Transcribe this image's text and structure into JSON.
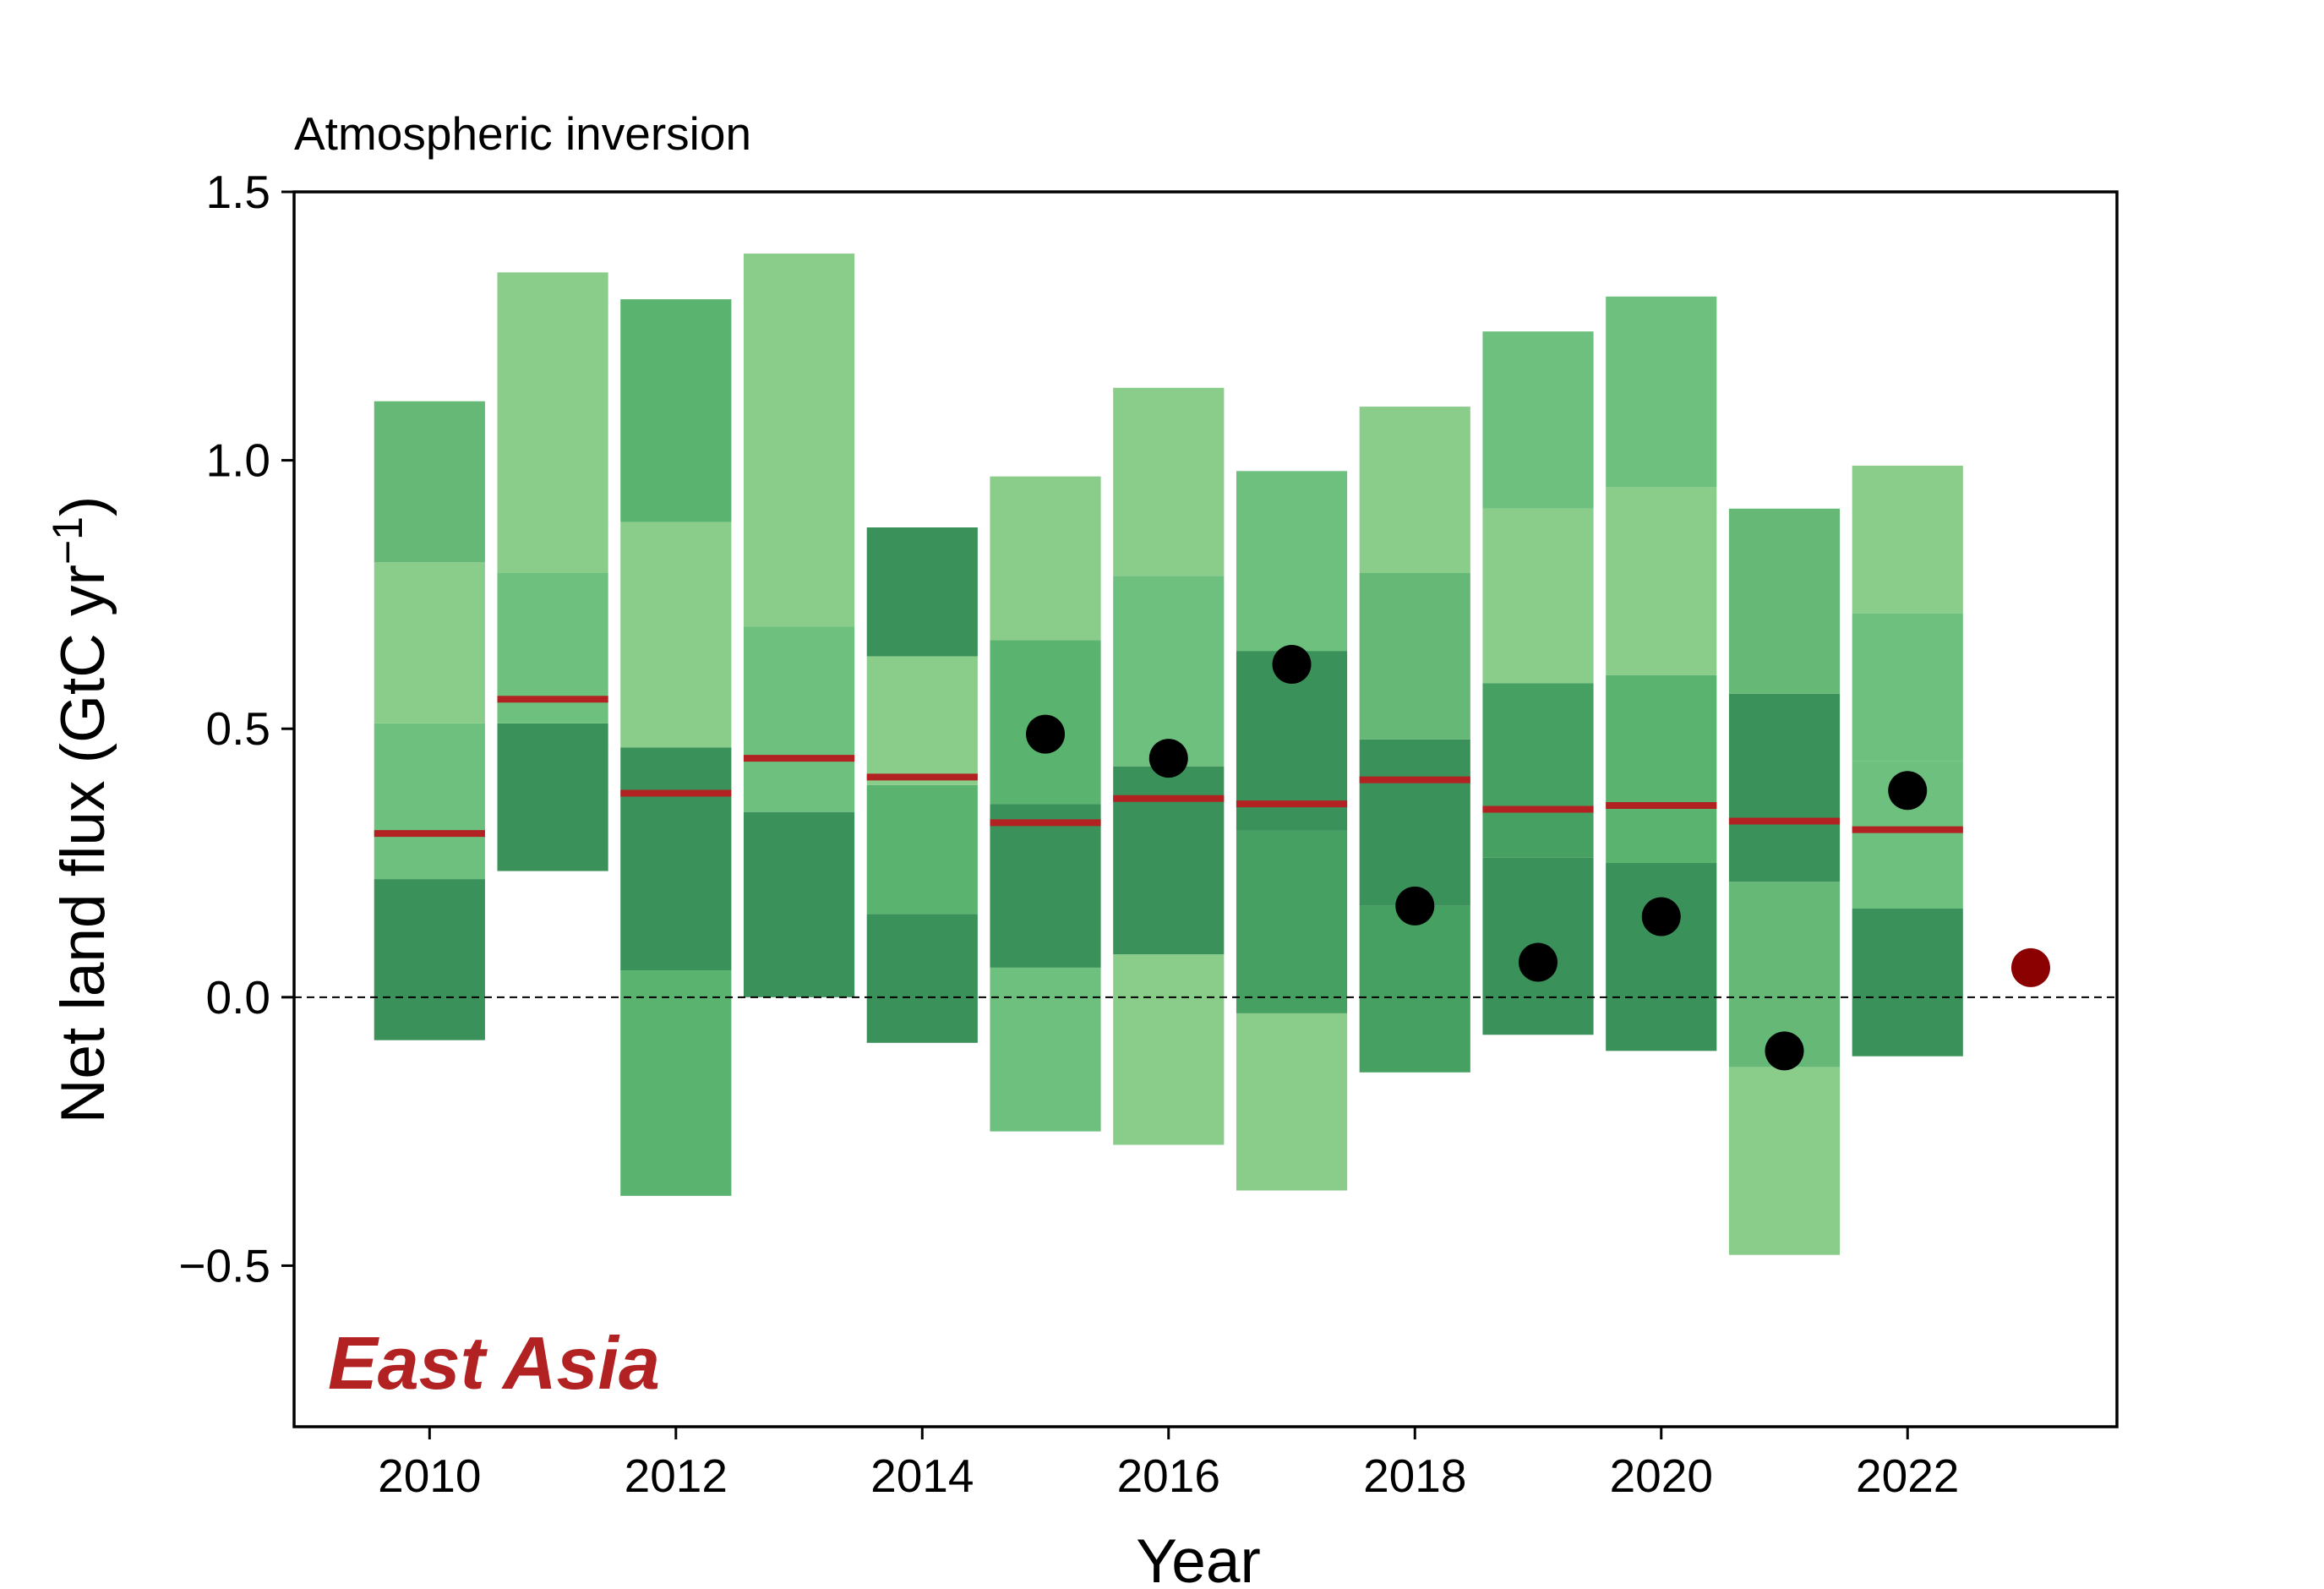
{
  "chart_data": {
    "type": "bar",
    "subtitle": "Atmospheric inversion",
    "region_label": "East Asia",
    "xlabel": "Year",
    "ylabel": "Net land flux (GtC yr",
    "ylabel_sup": "−1",
    "ylabel_close": ")",
    "xlim": [
      2008.9,
      2023.7
    ],
    "ylim": [
      -0.8,
      1.5
    ],
    "x_ticks": [
      2010,
      2012,
      2014,
      2016,
      2018,
      2020,
      2022
    ],
    "y_ticks": [
      {
        "value": -0.5,
        "label": "−0.5"
      },
      {
        "value": 0.0,
        "label": "0.0"
      },
      {
        "value": 0.5,
        "label": "0.5"
      },
      {
        "value": 1.0,
        "label": "1.0"
      },
      {
        "value": 1.5,
        "label": "1.5"
      }
    ],
    "zero_line": true,
    "bar_width_years": 0.9,
    "stacked_bands": [
      {
        "year": 2010,
        "segments": [
          {
            "y0": -0.08,
            "y1": 0.22,
            "color": "#3a915a"
          },
          {
            "y0": 0.22,
            "y1": 0.51,
            "color": "#6ec07f"
          },
          {
            "y0": 0.51,
            "y1": 0.81,
            "color": "#8acd8a"
          },
          {
            "y0": 0.81,
            "y1": 1.11,
            "color": "#66b877"
          }
        ]
      },
      {
        "year": 2011,
        "segments": [
          {
            "y0": 0.235,
            "y1": 0.51,
            "color": "#3a915a"
          },
          {
            "y0": 0.51,
            "y1": 0.79,
            "color": "#6ec07f"
          },
          {
            "y0": 0.79,
            "y1": 1.35,
            "color": "#8acd8a"
          }
        ]
      },
      {
        "year": 2012,
        "segments": [
          {
            "y0": -0.37,
            "y1": 0.05,
            "color": "#5bb370"
          },
          {
            "y0": 0.05,
            "y1": 0.465,
            "color": "#3a915a"
          },
          {
            "y0": 0.465,
            "y1": 0.885,
            "color": "#8acd8a"
          },
          {
            "y0": 0.885,
            "y1": 1.3,
            "color": "#5bb370"
          }
        ]
      },
      {
        "year": 2013,
        "segments": [
          {
            "y0": 0.0,
            "y1": 0.345,
            "color": "#3a915a"
          },
          {
            "y0": 0.345,
            "y1": 0.69,
            "color": "#6ec07f"
          },
          {
            "y0": 0.69,
            "y1": 1.385,
            "color": "#8acd8a"
          }
        ]
      },
      {
        "year": 2014,
        "segments": [
          {
            "y0": -0.085,
            "y1": 0.155,
            "color": "#3a915a"
          },
          {
            "y0": 0.155,
            "y1": 0.395,
            "color": "#5bb370"
          },
          {
            "y0": 0.395,
            "y1": 0.635,
            "color": "#8acd8a"
          },
          {
            "y0": 0.635,
            "y1": 0.875,
            "color": "#3a915a"
          }
        ]
      },
      {
        "year": 2015,
        "segments": [
          {
            "y0": -0.25,
            "y1": 0.055,
            "color": "#6ec07f"
          },
          {
            "y0": 0.055,
            "y1": 0.36,
            "color": "#3a915a"
          },
          {
            "y0": 0.36,
            "y1": 0.665,
            "color": "#5bb370"
          },
          {
            "y0": 0.665,
            "y1": 0.97,
            "color": "#8acd8a"
          }
        ]
      },
      {
        "year": 2016,
        "segments": [
          {
            "y0": -0.275,
            "y1": 0.08,
            "color": "#8acd8a"
          },
          {
            "y0": 0.08,
            "y1": 0.43,
            "color": "#3a915a"
          },
          {
            "y0": 0.43,
            "y1": 0.785,
            "color": "#6ec07f"
          },
          {
            "y0": 0.785,
            "y1": 1.135,
            "color": "#8acd8a"
          }
        ]
      },
      {
        "year": 2017,
        "segments": [
          {
            "y0": -0.36,
            "y1": -0.03,
            "color": "#8acd8a"
          },
          {
            "y0": -0.03,
            "y1": 0.31,
            "color": "#46a061"
          },
          {
            "y0": 0.31,
            "y1": 0.645,
            "color": "#3a915a"
          },
          {
            "y0": 0.645,
            "y1": 0.98,
            "color": "#6ec07f"
          }
        ]
      },
      {
        "year": 2018,
        "segments": [
          {
            "y0": -0.14,
            "y1": 0.17,
            "color": "#46a061"
          },
          {
            "y0": 0.17,
            "y1": 0.48,
            "color": "#3a915a"
          },
          {
            "y0": 0.48,
            "y1": 0.79,
            "color": "#66b877"
          },
          {
            "y0": 0.79,
            "y1": 1.1,
            "color": "#8acd8a"
          }
        ]
      },
      {
        "year": 2019,
        "segments": [
          {
            "y0": -0.07,
            "y1": 0.26,
            "color": "#3a915a"
          },
          {
            "y0": 0.26,
            "y1": 0.585,
            "color": "#46a061"
          },
          {
            "y0": 0.585,
            "y1": 0.91,
            "color": "#8acd8a"
          },
          {
            "y0": 0.91,
            "y1": 1.24,
            "color": "#6ec07f"
          }
        ]
      },
      {
        "year": 2020,
        "segments": [
          {
            "y0": -0.1,
            "y1": 0.25,
            "color": "#3a915a"
          },
          {
            "y0": 0.25,
            "y1": 0.6,
            "color": "#5bb370"
          },
          {
            "y0": 0.6,
            "y1": 0.95,
            "color": "#8acd8a"
          },
          {
            "y0": 0.95,
            "y1": 1.305,
            "color": "#6ec07f"
          }
        ]
      },
      {
        "year": 2021,
        "segments": [
          {
            "y0": -0.48,
            "y1": -0.13,
            "color": "#8acd8a"
          },
          {
            "y0": -0.13,
            "y1": 0.215,
            "color": "#66b877"
          },
          {
            "y0": 0.215,
            "y1": 0.565,
            "color": "#3a915a"
          },
          {
            "y0": 0.565,
            "y1": 0.91,
            "color": "#66b877"
          }
        ]
      },
      {
        "year": 2022,
        "segments": [
          {
            "y0": -0.11,
            "y1": 0.165,
            "color": "#3a915a"
          },
          {
            "y0": 0.165,
            "y1": 0.44,
            "color": "#6ec07f"
          },
          {
            "y0": 0.44,
            "y1": 0.715,
            "color": "#6ec07f"
          },
          {
            "y0": 0.715,
            "y1": 0.99,
            "color": "#8acd8a"
          }
        ]
      }
    ],
    "median_lines": [
      {
        "year": 2010,
        "value": 0.305
      },
      {
        "year": 2011,
        "value": 0.555
      },
      {
        "year": 2012,
        "value": 0.38
      },
      {
        "year": 2013,
        "value": 0.445
      },
      {
        "year": 2014,
        "value": 0.41
      },
      {
        "year": 2015,
        "value": 0.325
      },
      {
        "year": 2016,
        "value": 0.37
      },
      {
        "year": 2017,
        "value": 0.36
      },
      {
        "year": 2018,
        "value": 0.405
      },
      {
        "year": 2019,
        "value": 0.35
      },
      {
        "year": 2020,
        "value": 0.357
      },
      {
        "year": 2021,
        "value": 0.328
      },
      {
        "year": 2022,
        "value": 0.312
      }
    ],
    "points": [
      {
        "year": 2015,
        "value": 0.49,
        "color": "#000000"
      },
      {
        "year": 2016,
        "value": 0.445,
        "color": "#000000"
      },
      {
        "year": 2017,
        "value": 0.62,
        "color": "#000000"
      },
      {
        "year": 2018,
        "value": 0.17,
        "color": "#000000"
      },
      {
        "year": 2019,
        "value": 0.065,
        "color": "#000000"
      },
      {
        "year": 2020,
        "value": 0.15,
        "color": "#000000"
      },
      {
        "year": 2021,
        "value": -0.1,
        "color": "#000000"
      },
      {
        "year": 2022,
        "value": 0.385,
        "color": "#000000"
      },
      {
        "year": 2023,
        "value": 0.055,
        "color": "#8b0000"
      }
    ],
    "colors": {
      "median": "#b22222",
      "region_label": "#b22222",
      "axis": "#000000"
    }
  }
}
